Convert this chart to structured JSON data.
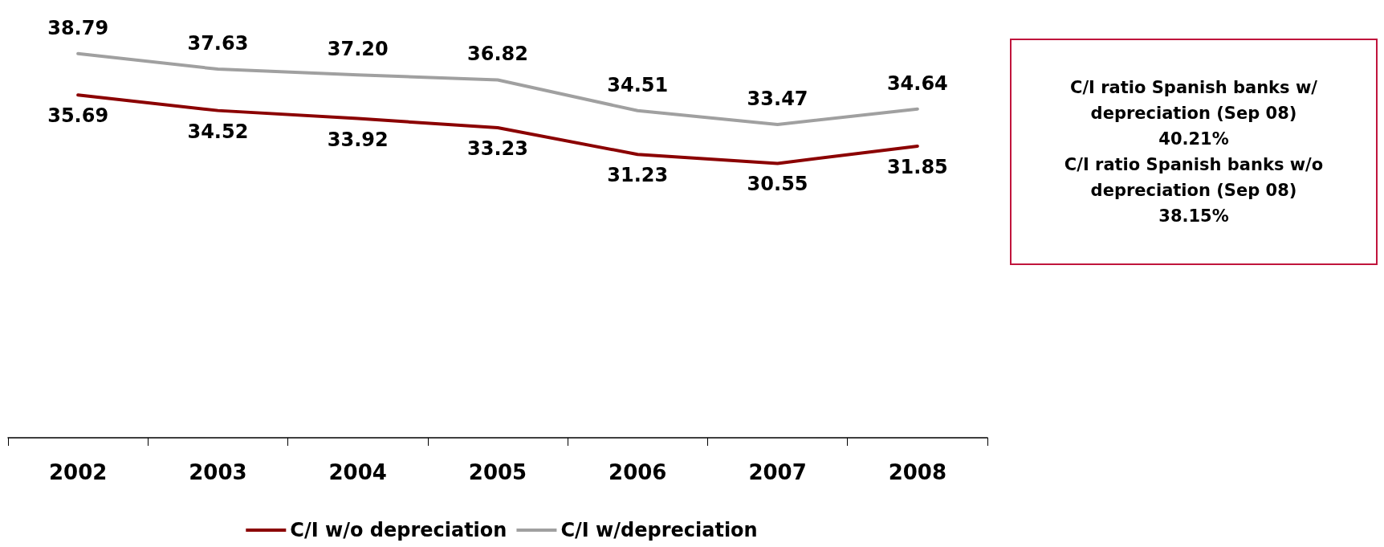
{
  "chart_data": {
    "type": "line",
    "categories": [
      "2002",
      "2003",
      "2004",
      "2005",
      "2006",
      "2007",
      "2008"
    ],
    "series": [
      {
        "name": "C/I w/o depreciation",
        "color": "#8b0000",
        "values": [
          35.69,
          34.52,
          33.92,
          33.23,
          31.23,
          30.55,
          31.85
        ]
      },
      {
        "name": "C/I w/depreciation",
        "color": "#a0a0a0",
        "values": [
          38.79,
          37.63,
          37.2,
          36.82,
          34.51,
          33.47,
          34.64
        ],
        "value_labels": [
          "38.79",
          "37.63",
          "37.20",
          "36.82",
          "34.51",
          "33.47",
          "34.64"
        ]
      }
    ],
    "tick_labels": "x",
    "grid": false,
    "marker": "none",
    "line_style": "solid",
    "data_labels": true,
    "legend": "bottom",
    "annotations": [
      "C/I ratio Spanish banks w/ depreciation (Sep 08)",
      "40.21%",
      "C/I ratio Spanish banks w/o depreciation (Sep 08)",
      "38.15%"
    ]
  }
}
